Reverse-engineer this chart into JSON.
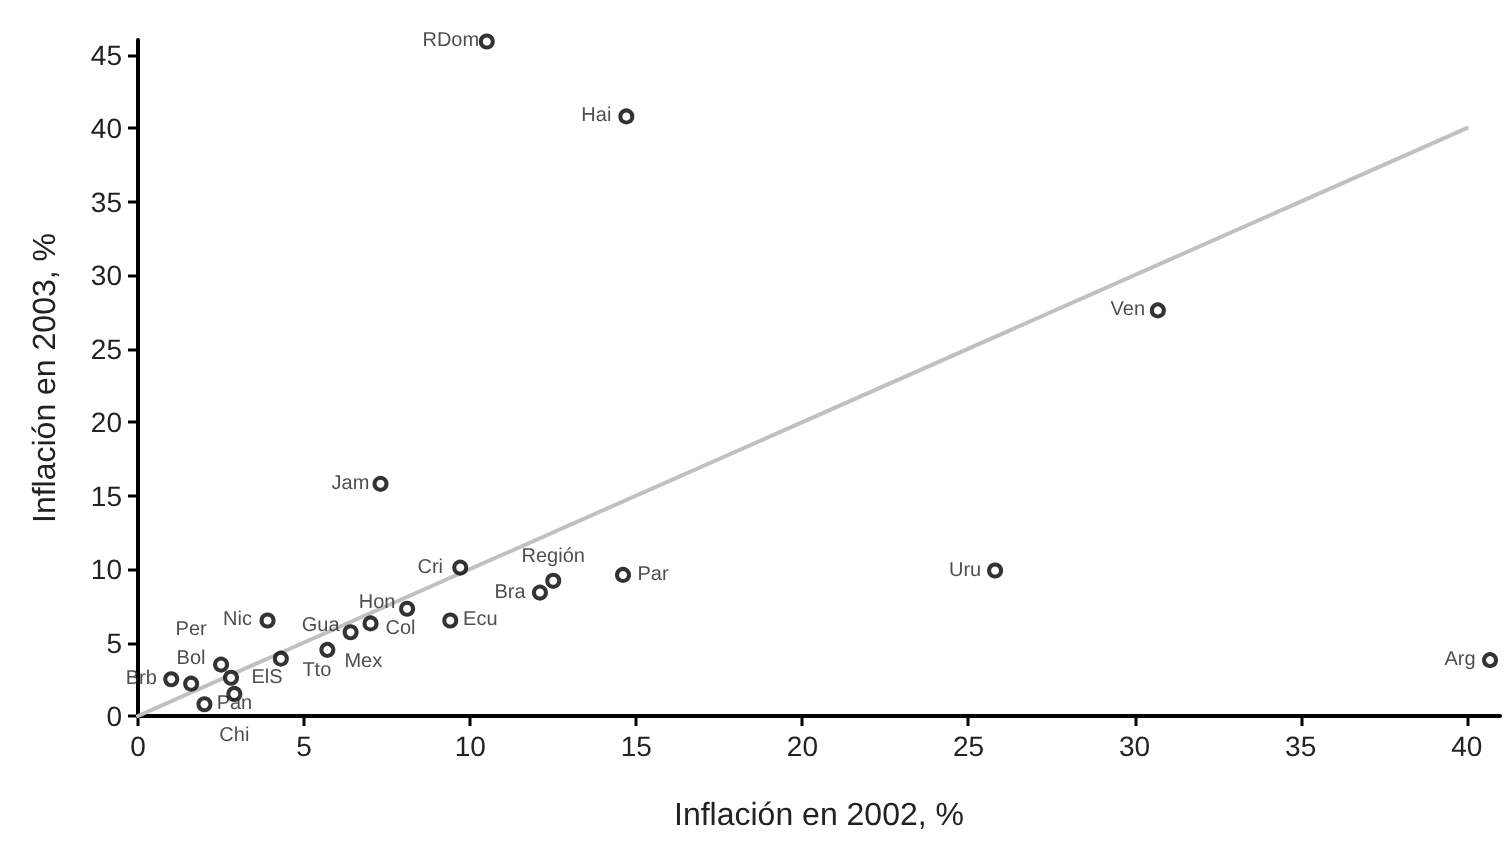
{
  "chart_data": {
    "type": "scatter",
    "xlabel": "Inflación en 2002, %",
    "ylabel": "Inflación en 2003, %",
    "xlim": [
      0,
      41
    ],
    "xticks": [
      0,
      5,
      10,
      15,
      20,
      25,
      30,
      35,
      40
    ],
    "ylim": [
      0,
      46
    ],
    "yticks": [
      0,
      5,
      10,
      15,
      20,
      25,
      30,
      35,
      40,
      45
    ],
    "grid": false,
    "marker": "circle",
    "series": [
      {
        "color": "#000000",
        "x": [
          10.5,
          14.7,
          30.7,
          7.3,
          9.7,
          12.1,
          12.5,
          14.6,
          25.8,
          40.7,
          8.1,
          7.0,
          9.4,
          5.7,
          6.4,
          3.9,
          2.8,
          4.3,
          2.5,
          1.0,
          2.9,
          1.6,
          2.0
        ],
        "values": [
          45.9,
          40.8,
          27.6,
          15.8,
          10.1,
          8.4,
          9.2,
          9.6,
          9.9,
          3.8,
          7.3,
          6.3,
          6.5,
          4.5,
          5.7,
          6.5,
          2.6,
          3.9,
          3.5,
          2.5,
          1.5,
          2.2,
          0.8
        ],
        "value_labels": [
          "RDom",
          "Hai",
          "Ven",
          "Jam",
          "Cri",
          "Bra",
          "Región",
          "Par",
          "Uru",
          "Arg",
          "Hon",
          "Col",
          "Ecu",
          "Mex",
          "Gua",
          "Nic",
          "ElS",
          "Tto",
          "Bol",
          "Brb",
          "Chi",
          "Per",
          "Pan"
        ]
      },
      {
        "type": "line",
        "marker": "none",
        "color": "#c0c0c0",
        "line_style": "solid",
        "x": [
          0,
          40
        ],
        "values": [
          0,
          40
        ]
      }
    ]
  }
}
